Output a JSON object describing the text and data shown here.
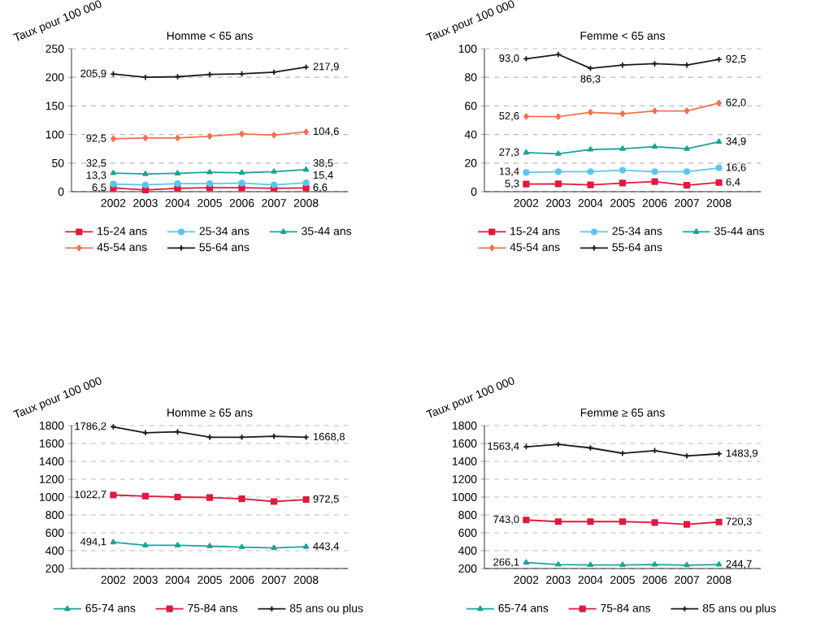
{
  "chart_data": [
    {
      "type": "line",
      "title": "Homme < 65 ans",
      "ylabel": "Taux pour 100 000",
      "categories": [
        "2002",
        "2003",
        "2004",
        "2005",
        "2006",
        "2007",
        "2008"
      ],
      "ylim": [
        0,
        250
      ],
      "yticks": [
        0,
        50,
        100,
        150,
        200,
        250
      ],
      "grid": "y",
      "legend": "bottom",
      "series": [
        {
          "name": "15-24 ans",
          "color": "#e2183d",
          "marker": "square",
          "values": [
            6.5,
            3,
            6,
            7,
            7,
            6,
            6.6
          ],
          "value_labels": [
            "6,5",
            null,
            null,
            null,
            null,
            null,
            "6,6"
          ]
        },
        {
          "name": "25-34 ans",
          "color": "#5bc5f2",
          "marker": "circle",
          "values": [
            13.3,
            12,
            14,
            14,
            15,
            12,
            15.4
          ],
          "value_labels": [
            "13,3",
            null,
            null,
            null,
            null,
            null,
            "15,4"
          ]
        },
        {
          "name": "35-44 ans",
          "color": "#1aa39a",
          "marker": "triangle",
          "values": [
            32.5,
            31,
            32,
            34,
            33,
            35,
            38.5
          ],
          "value_labels": [
            "32,5",
            null,
            null,
            null,
            null,
            null,
            "38,5"
          ]
        },
        {
          "name": "45-54 ans",
          "color": "#f4704f",
          "marker": "diamond",
          "values": [
            92.5,
            94,
            94,
            97,
            101,
            99,
            104.6
          ],
          "value_labels": [
            "92,5",
            null,
            null,
            null,
            null,
            null,
            "104,6"
          ]
        },
        {
          "name": "55-64 ans",
          "color": "#1a1a1a",
          "marker": "cross",
          "values": [
            205.9,
            200,
            201,
            205,
            206,
            209,
            217.9
          ],
          "value_labels": [
            "205,9",
            null,
            null,
            null,
            null,
            null,
            "217,9"
          ]
        }
      ]
    },
    {
      "type": "line",
      "title": "Femme < 65 ans",
      "ylabel": "Taux pour 100 000",
      "categories": [
        "2002",
        "2003",
        "2004",
        "2005",
        "2006",
        "2007",
        "2008"
      ],
      "ylim": [
        0,
        100
      ],
      "yticks": [
        0,
        20,
        40,
        60,
        80,
        100
      ],
      "grid": "y",
      "legend": "bottom",
      "series": [
        {
          "name": "15-24 ans",
          "color": "#e2183d",
          "marker": "square",
          "values": [
            5.3,
            5.5,
            4.8,
            6,
            7,
            4.5,
            6.4
          ],
          "value_labels": [
            "5,3",
            null,
            null,
            null,
            null,
            null,
            "6,4"
          ]
        },
        {
          "name": "25-34 ans",
          "color": "#5bc5f2",
          "marker": "circle",
          "values": [
            13.4,
            14,
            14,
            15,
            14,
            14,
            16.6
          ],
          "value_labels": [
            "13,4",
            null,
            null,
            null,
            null,
            null,
            "16,6"
          ]
        },
        {
          "name": "35-44 ans",
          "color": "#1aa39a",
          "marker": "triangle",
          "values": [
            27.3,
            26.5,
            29.5,
            30,
            31.5,
            30,
            34.9
          ],
          "value_labels": [
            "27,3",
            null,
            null,
            null,
            null,
            null,
            "34,9"
          ]
        },
        {
          "name": "45-54 ans",
          "color": "#f4704f",
          "marker": "diamond",
          "values": [
            52.6,
            52.5,
            55.5,
            54.5,
            56.5,
            56.5,
            62.0
          ],
          "value_labels": [
            "52,6",
            null,
            null,
            null,
            null,
            null,
            "62,0"
          ]
        },
        {
          "name": "55-64 ans",
          "color": "#1a1a1a",
          "marker": "cross",
          "values": [
            93.0,
            96,
            86.3,
            88.5,
            89.5,
            88.5,
            92.5
          ],
          "value_labels": [
            "93,0",
            null,
            "86,3",
            null,
            null,
            null,
            "92,5"
          ]
        }
      ]
    },
    {
      "type": "line",
      "title": "Homme ≥ 65 ans",
      "ylabel": "Taux pour 100 000",
      "categories": [
        "2002",
        "2003",
        "2004",
        "2005",
        "2006",
        "2007",
        "2008"
      ],
      "ylim": [
        200,
        1800
      ],
      "yticks": [
        200,
        400,
        600,
        800,
        1000,
        1200,
        1400,
        1600,
        1800
      ],
      "grid": "y",
      "legend": "bottom",
      "series": [
        {
          "name": "65-74 ans",
          "color": "#1aa39a",
          "marker": "triangle",
          "values": [
            494.1,
            460,
            460,
            450,
            440,
            430,
            443.4
          ],
          "value_labels": [
            "494,1",
            null,
            null,
            null,
            null,
            null,
            "443,4"
          ]
        },
        {
          "name": "75-84 ans",
          "color": "#e2183d",
          "marker": "square",
          "values": [
            1022.7,
            1010,
            1000,
            995,
            980,
            950,
            972.5
          ],
          "value_labels": [
            "1022,7",
            null,
            null,
            null,
            null,
            null,
            "972,5"
          ]
        },
        {
          "name": "85 ans ou plus",
          "color": "#1a1a1a",
          "marker": "cross",
          "values": [
            1786.2,
            1720,
            1730,
            1670,
            1670,
            1680,
            1668.8
          ],
          "value_labels": [
            "1786,2",
            null,
            null,
            null,
            null,
            null,
            "1668,8"
          ]
        }
      ]
    },
    {
      "type": "line",
      "title": "Femme ≥ 65 ans",
      "ylabel": "Taux pour 100 000",
      "categories": [
        "2002",
        "2003",
        "2004",
        "2005",
        "2006",
        "2007",
        "2008"
      ],
      "ylim": [
        200,
        1800
      ],
      "yticks": [
        200,
        400,
        600,
        800,
        1000,
        1200,
        1400,
        1600,
        1800
      ],
      "grid": "y",
      "legend": "bottom",
      "series": [
        {
          "name": "65-74 ans",
          "color": "#1aa39a",
          "marker": "triangle",
          "values": [
            266.1,
            245,
            240,
            240,
            245,
            238,
            244.7
          ],
          "value_labels": [
            "266,1",
            null,
            null,
            null,
            null,
            null,
            "244,7"
          ]
        },
        {
          "name": "75-84 ans",
          "color": "#e2183d",
          "marker": "square",
          "values": [
            743.0,
            725,
            725,
            725,
            715,
            695,
            720.3
          ],
          "value_labels": [
            "743,0",
            null,
            null,
            null,
            null,
            null,
            "720,3"
          ]
        },
        {
          "name": "85 ans ou plus",
          "color": "#1a1a1a",
          "marker": "cross",
          "values": [
            1563.4,
            1590,
            1550,
            1490,
            1520,
            1460,
            1483.9
          ],
          "value_labels": [
            "1563,4",
            null,
            null,
            null,
            null,
            null,
            "1483,9"
          ]
        }
      ]
    }
  ]
}
